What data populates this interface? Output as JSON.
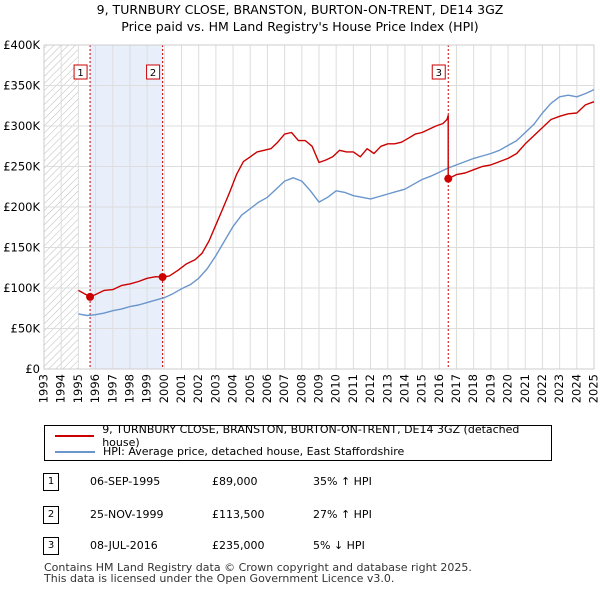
{
  "title_line1": "9, TURNBURY CLOSE, BRANSTON, BURTON-ON-TRENT, DE14 3GZ",
  "title_line2": "Price paid vs. HM Land Registry's House Price Index (HPI)",
  "legend": {
    "property": "9, TURNBURY CLOSE, BRANSTON, BURTON-ON-TRENT, DE14 3GZ (detached house)",
    "hpi": "HPI: Average price, detached house, East Staffordshire"
  },
  "events": [
    {
      "num": "1",
      "date": "06-SEP-1995",
      "price": "£89,000",
      "hpi": "35% ↑ HPI"
    },
    {
      "num": "2",
      "date": "25-NOV-1999",
      "price": "£113,500",
      "hpi": "27% ↑ HPI"
    },
    {
      "num": "3",
      "date": "08-JUL-2016",
      "price": "£235,000",
      "hpi": "5% ↓ HPI"
    }
  ],
  "footer_line1": "Contains HM Land Registry data © Crown copyright and database right 2025.",
  "footer_line2": "This data is licensed under the Open Government Licence v3.0.",
  "colors": {
    "property": "#cc0000",
    "hpi": "#6a96cc",
    "shade": "#e8eefa",
    "hatch": "#bbbbbb",
    "grid": "#dddddd",
    "event_line": "#cc0000"
  },
  "chart_data": {
    "type": "line",
    "title": "9, TURNBURY CLOSE, BRANSTON, BURTON-ON-TRENT, DE14 3GZ — Price paid vs. HM Land Registry's House Price Index (HPI)",
    "xlabel": "",
    "ylabel": "",
    "xlim": [
      1993,
      2025
    ],
    "ylim": [
      0,
      400000
    ],
    "y_ticks": [
      0,
      50000,
      100000,
      150000,
      200000,
      250000,
      300000,
      350000,
      400000
    ],
    "y_tick_labels": [
      "£0",
      "£50K",
      "£100K",
      "£150K",
      "£200K",
      "£250K",
      "£300K",
      "£350K",
      "£400K"
    ],
    "x_ticks": [
      1993,
      1994,
      1995,
      1996,
      1997,
      1998,
      1999,
      2000,
      2001,
      2002,
      2003,
      2004,
      2005,
      2006,
      2007,
      2008,
      2009,
      2010,
      2011,
      2012,
      2013,
      2014,
      2015,
      2016,
      2017,
      2018,
      2019,
      2020,
      2021,
      2022,
      2023,
      2024,
      2025
    ],
    "x_tick_labels": [
      "1993",
      "1994",
      "1995",
      "1996",
      "1997",
      "1998",
      "1999",
      "2000",
      "2001",
      "2002",
      "2003",
      "2004",
      "2005",
      "2006",
      "2007",
      "2008",
      "2009",
      "2010",
      "2011",
      "2012",
      "2013",
      "2014",
      "2015",
      "2016",
      "2017",
      "2018",
      "2019",
      "2020",
      "2021",
      "2022",
      "2023",
      "2024",
      "2025"
    ],
    "grid": true,
    "legend_position": "below",
    "shaded_region_before": 1995.0,
    "sale_event_spans": [
      [
        1995.68,
        1999.9
      ]
    ],
    "series": [
      {
        "name": "9, TURNBURY CLOSE, BRANSTON, BURTON-ON-TRENT, DE14 3GZ (detached house)",
        "x": [
          1995.0,
          1995.68,
          1996.0,
          1996.5,
          1997.0,
          1997.5,
          1998.0,
          1998.5,
          1999.0,
          1999.5,
          1999.9,
          2000.3,
          2000.8,
          2001.3,
          2001.8,
          2002.2,
          2002.6,
          2003.0,
          2003.4,
          2003.8,
          2004.2,
          2004.6,
          2005.0,
          2005.4,
          2005.8,
          2006.2,
          2006.6,
          2007.0,
          2007.4,
          2007.8,
          2008.2,
          2008.6,
          2009.0,
          2009.4,
          2009.8,
          2010.2,
          2010.6,
          2011.0,
          2011.4,
          2011.8,
          2012.2,
          2012.6,
          2013.0,
          2013.4,
          2013.8,
          2014.2,
          2014.6,
          2015.0,
          2015.4,
          2015.8,
          2016.2,
          2016.45,
          2016.52,
          2016.52,
          2017.0,
          2017.5,
          2018.0,
          2018.5,
          2019.0,
          2019.5,
          2020.0,
          2020.5,
          2021.0,
          2021.5,
          2022.0,
          2022.5,
          2023.0,
          2023.5,
          2024.0,
          2024.5,
          2025.0
        ],
        "values": [
          97000,
          89000,
          92000,
          97000,
          98000,
          103000,
          105000,
          108000,
          112000,
          114000,
          113500,
          115000,
          122000,
          130000,
          135000,
          143000,
          158000,
          178000,
          198000,
          218000,
          240000,
          256000,
          262000,
          268000,
          270000,
          272000,
          280000,
          290000,
          292000,
          282000,
          282000,
          275000,
          255000,
          258000,
          262000,
          270000,
          268000,
          268000,
          262000,
          272000,
          266000,
          275000,
          278000,
          278000,
          280000,
          285000,
          290000,
          292000,
          296000,
          300000,
          303000,
          308000,
          313000,
          235000,
          240000,
          242000,
          246000,
          250000,
          252000,
          256000,
          260000,
          266000,
          278000,
          288000,
          298000,
          308000,
          312000,
          315000,
          316000,
          326000,
          330000
        ]
      },
      {
        "name": "HPI: Average price, detached house, East Staffordshire",
        "x": [
          1995.0,
          1995.5,
          1996.0,
          1996.5,
          1997.0,
          1997.5,
          1998.0,
          1998.5,
          1999.0,
          1999.5,
          2000.0,
          2000.5,
          2001.0,
          2001.5,
          2002.0,
          2002.5,
          2003.0,
          2003.5,
          2004.0,
          2004.5,
          2005.0,
          2005.5,
          2006.0,
          2006.5,
          2007.0,
          2007.5,
          2008.0,
          2008.5,
          2009.0,
          2009.5,
          2010.0,
          2010.5,
          2011.0,
          2011.5,
          2012.0,
          2012.5,
          2013.0,
          2013.5,
          2014.0,
          2014.5,
          2015.0,
          2015.5,
          2016.0,
          2016.5,
          2017.0,
          2017.5,
          2018.0,
          2018.5,
          2019.0,
          2019.5,
          2020.0,
          2020.5,
          2021.0,
          2021.5,
          2022.0,
          2022.5,
          2023.0,
          2023.5,
          2024.0,
          2024.5,
          2025.0
        ],
        "values": [
          68000,
          66000,
          67000,
          69000,
          72000,
          74000,
          77000,
          79000,
          82000,
          85000,
          88000,
          93000,
          99000,
          104000,
          112000,
          124000,
          140000,
          158000,
          176000,
          190000,
          198000,
          206000,
          212000,
          222000,
          232000,
          236000,
          232000,
          220000,
          206000,
          212000,
          220000,
          218000,
          214000,
          212000,
          210000,
          213000,
          216000,
          219000,
          222000,
          228000,
          234000,
          238000,
          243000,
          248000,
          252000,
          256000,
          260000,
          263000,
          266000,
          270000,
          276000,
          282000,
          292000,
          302000,
          316000,
          328000,
          336000,
          338000,
          336000,
          340000,
          345000
        ]
      }
    ],
    "sales": [
      {
        "label": "1",
        "x": 1995.68,
        "value": 89000
      },
      {
        "label": "2",
        "x": 1999.9,
        "value": 113500
      },
      {
        "label": "3",
        "x": 2016.52,
        "value": 235000
      }
    ]
  }
}
